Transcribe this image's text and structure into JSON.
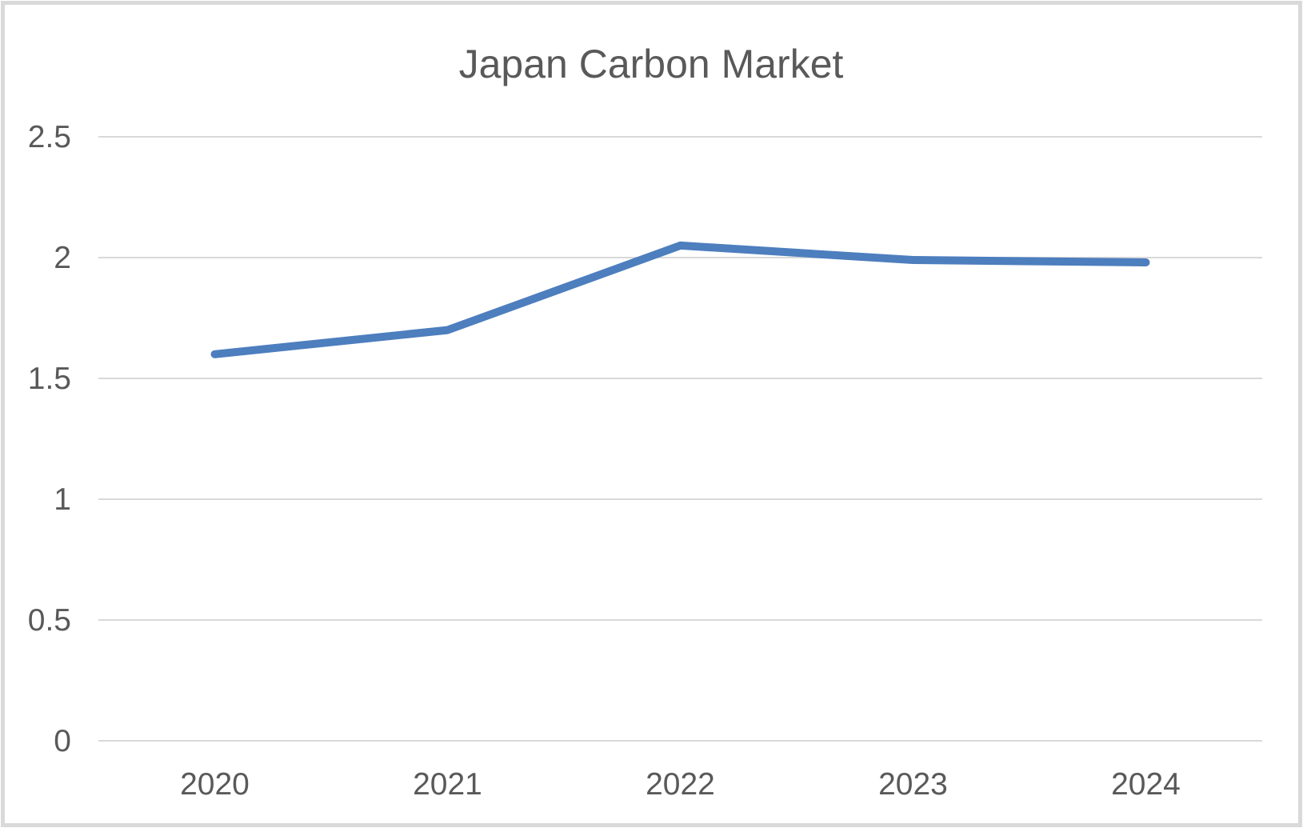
{
  "window": {
    "background": "#ffffff",
    "frame_border_color": "#d9d9d9"
  },
  "chart_data": {
    "type": "line",
    "title": "Japan Carbon Market",
    "categories": [
      "2020",
      "2021",
      "2022",
      "2023",
      "2024"
    ],
    "values": [
      1.6,
      1.7,
      2.05,
      1.99,
      1.98
    ],
    "xlabel": "",
    "ylabel": "",
    "ylim": [
      0,
      2.5
    ],
    "ytick_step": 0.5,
    "ytick_labels": [
      "0",
      "0.5",
      "1",
      "1.5",
      "2",
      "2.5"
    ],
    "grid": true,
    "legend_position": "none",
    "line_color": "#4D7EBE",
    "grid_color": "#d9d9d9",
    "text_color": "#595959"
  }
}
